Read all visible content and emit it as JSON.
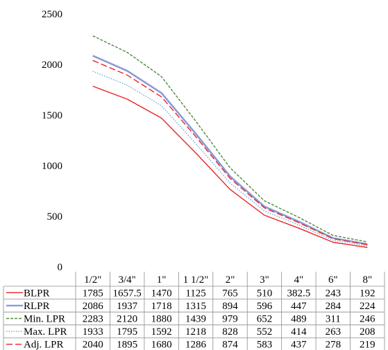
{
  "chart_data": {
    "type": "line",
    "title": "",
    "xlabel": "",
    "ylabel": "",
    "ylim": [
      0,
      2500
    ],
    "yticks": [
      "0",
      "500",
      "1000",
      "1500",
      "2000",
      "2500"
    ],
    "categories": [
      "1/2\"",
      "3/4\"",
      "1\"",
      "1 1/2\"",
      "2\"",
      "3\"",
      "4\"",
      "6\"",
      "8\""
    ],
    "grid": false,
    "legend": "data-table-below-chart",
    "series": [
      {
        "name": "BLPR",
        "values": [
          1785,
          1657.5,
          1470,
          1125,
          765,
          510,
          382.5,
          243,
          192
        ],
        "labels": [
          "1785",
          "1657.5",
          "1470",
          "1125",
          "765",
          "510",
          "382.5",
          "243",
          "192"
        ],
        "color": "#ee2222",
        "dash": "solid"
      },
      {
        "name": "RLPR",
        "values": [
          2086,
          1937,
          1718,
          1315,
          894,
          596,
          447,
          284,
          224
        ],
        "labels": [
          "2086",
          "1937",
          "1718",
          "1315",
          "894",
          "596",
          "447",
          "284",
          "224"
        ],
        "color": "#8a9bd6",
        "dash": "solid"
      },
      {
        "name": "Min. LPR",
        "values": [
          2283,
          2120,
          1880,
          1439,
          979,
          652,
          489,
          311,
          246
        ],
        "labels": [
          "2283",
          "2120",
          "1880",
          "1439",
          "979",
          "652",
          "489",
          "311",
          "246"
        ],
        "color": "#4e8a3a",
        "dash": "short-dash"
      },
      {
        "name": "Max. LPR",
        "values": [
          1933,
          1795,
          1592,
          1218,
          828,
          552,
          414,
          263,
          208
        ],
        "labels": [
          "1933",
          "1795",
          "1592",
          "1218",
          "828",
          "552",
          "414",
          "263",
          "208"
        ],
        "color": "#6ea8dc",
        "dash": "dotted"
      },
      {
        "name": "Adj. LPR",
        "values": [
          2040,
          1895,
          1680,
          1286,
          874,
          583,
          437,
          278,
          219
        ],
        "labels": [
          "2040",
          "1895",
          "1680",
          "1286",
          "874",
          "583",
          "437",
          "278",
          "219"
        ],
        "color": "#ee2222",
        "dash": "long-dash"
      }
    ]
  }
}
